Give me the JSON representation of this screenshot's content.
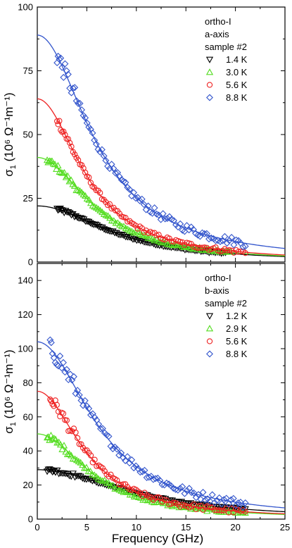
{
  "figure": {
    "xlabel": "Frequency (GHz)"
  },
  "chart_data": [
    {
      "type": "scatter",
      "panel": "top",
      "ylabel_main": "σ",
      "ylabel_sub": "1",
      "ylabel_unit": "(10⁶ Ω⁻¹m⁻¹)",
      "xlim": [
        0,
        25
      ],
      "ylim": [
        0,
        100
      ],
      "xticks": [
        0,
        5,
        10,
        15,
        20,
        25
      ],
      "yticks": [
        0,
        25,
        50,
        75,
        100
      ],
      "legend_position": "top-right",
      "legend_header": [
        "ortho-I",
        "a-axis",
        "sample #2"
      ],
      "series": [
        {
          "name": "1.4 K",
          "marker": "triangle-down",
          "color": "#000000",
          "sigma0": 22,
          "gamma": 8.2,
          "x_range": [
            2.0,
            19.0
          ],
          "noise": 0.3
        },
        {
          "name": "3.0 K",
          "marker": "triangle-up",
          "color": "#55dd22",
          "sigma0": 41,
          "gamma": 6.2,
          "x_range": [
            1.0,
            19.5
          ],
          "noise": 0.5
        },
        {
          "name": "5.6 K",
          "marker": "circle",
          "color": "#ee2222",
          "sigma0": 64,
          "gamma": 5.3,
          "x_range": [
            2.0,
            21.0
          ],
          "noise": 0.8
        },
        {
          "name": "8.8 K",
          "marker": "diamond",
          "color": "#3355cc",
          "sigma0": 89,
          "gamma": 6.3,
          "x_range": [
            2.0,
            21.0
          ],
          "noise": 1.6
        }
      ]
    },
    {
      "type": "scatter",
      "panel": "bottom",
      "ylabel_main": "σ",
      "ylabel_sub": "1",
      "ylabel_unit": "(10⁶ Ω⁻¹m⁻¹)",
      "xlim": [
        0,
        25
      ],
      "ylim": [
        0,
        150
      ],
      "xticks": [
        0,
        5,
        10,
        15,
        20,
        25
      ],
      "yticks": [
        0,
        20,
        40,
        60,
        80,
        100,
        120,
        140
      ],
      "legend_position": "top-right",
      "legend_header": [
        "ortho-I",
        "b-axis",
        "sample #2"
      ],
      "series": [
        {
          "name": "1.2 K",
          "marker": "triangle-down",
          "color": "#000000",
          "sigma0": 29,
          "gamma": 10.5,
          "x_range": [
            1.0,
            21.0
          ],
          "noise": 0.5
        },
        {
          "name": "2.9 K",
          "marker": "triangle-up",
          "color": "#55dd22",
          "sigma0": 50,
          "gamma": 6.0,
          "x_range": [
            1.0,
            21.0
          ],
          "noise": 0.8
        },
        {
          "name": "5.6 K",
          "marker": "circle",
          "color": "#ee2222",
          "sigma0": 75,
          "gamma": 5.2,
          "x_range": [
            1.3,
            21.0
          ],
          "noise": 1.5
        },
        {
          "name": "8.8 K",
          "marker": "diamond",
          "color": "#3355cc",
          "sigma0": 104,
          "gamma": 6.5,
          "x_range": [
            1.3,
            21.0
          ],
          "noise": 2.5
        }
      ]
    }
  ]
}
